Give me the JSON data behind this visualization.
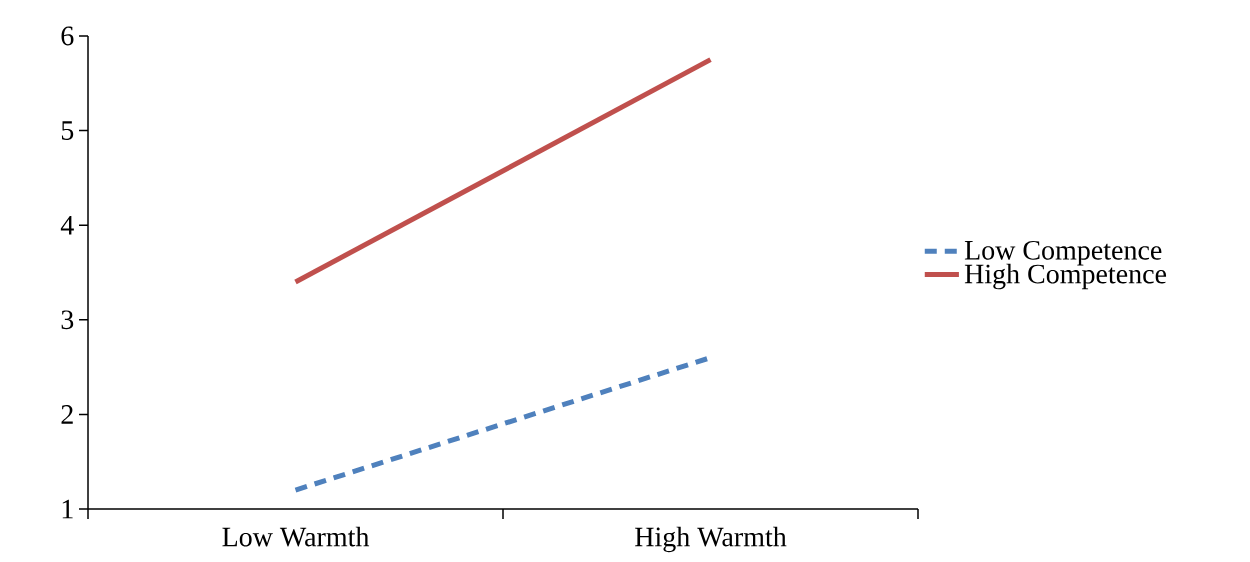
{
  "chart_data": {
    "type": "line",
    "categories": [
      "Low Warmth",
      "High Warmth"
    ],
    "series": [
      {
        "name": "Low Competence",
        "color": "#4f81bd",
        "values": [
          1.2,
          2.6
        ],
        "line_style": "dashed"
      },
      {
        "name": "High Competence",
        "color": "#c0504d",
        "values": [
          3.4,
          5.75
        ],
        "line_style": "solid"
      }
    ],
    "ylim": [
      1,
      6
    ],
    "yticks": [
      1,
      2,
      3,
      4,
      5,
      6
    ],
    "grid": false,
    "legend": "right",
    "marker": "none"
  }
}
